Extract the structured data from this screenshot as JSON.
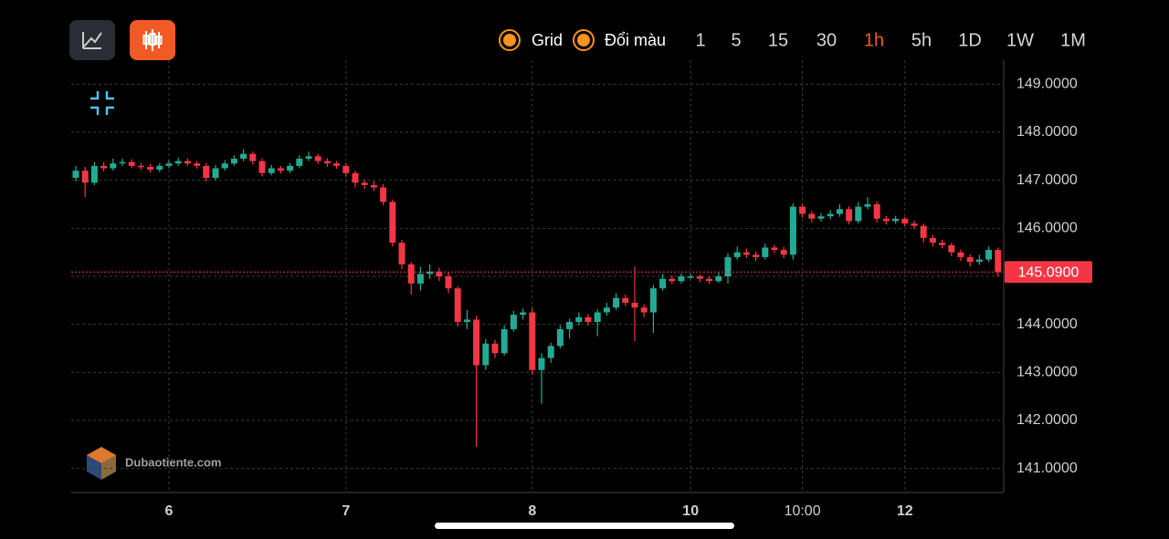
{
  "toolbar": {
    "options": [
      "Grid",
      "Đổi màu"
    ],
    "timeframes": [
      "1",
      "5",
      "15",
      "30",
      "1h",
      "5h",
      "1D",
      "1W",
      "1M"
    ],
    "active_timeframe": "1h"
  },
  "watermark": "Dubaotiente.com",
  "chart_data": {
    "type": "candlestick",
    "grid": true,
    "up_color": "#22ab94",
    "down_color": "#f23645",
    "ylim": [
      140.5,
      149.5
    ],
    "yticks": [
      {
        "value": 141,
        "label": "141.0000"
      },
      {
        "value": 142,
        "label": "142.0000"
      },
      {
        "value": 143,
        "label": "143.0000"
      },
      {
        "value": 144,
        "label": "144.0000"
      },
      {
        "value": 145,
        "label": "145.0000"
      },
      {
        "value": 146,
        "label": "146.0000"
      },
      {
        "value": 147,
        "label": "147.0000"
      },
      {
        "value": 148,
        "label": "148.0000"
      },
      {
        "value": 149,
        "label": "149.0000"
      }
    ],
    "last_price": {
      "value": 145.09,
      "label": "145.0900",
      "color": "#f23645"
    },
    "categories": [
      null,
      null,
      null,
      null,
      null,
      null,
      null,
      null,
      null,
      null,
      "6",
      null,
      null,
      null,
      null,
      null,
      null,
      null,
      null,
      null,
      null,
      null,
      null,
      null,
      null,
      null,
      null,
      null,
      null,
      "7",
      null,
      null,
      null,
      null,
      null,
      null,
      null,
      null,
      null,
      null,
      null,
      null,
      null,
      null,
      null,
      null,
      null,
      null,
      null,
      "8",
      null,
      null,
      null,
      null,
      null,
      null,
      null,
      null,
      null,
      null,
      null,
      null,
      null,
      null,
      null,
      null,
      "10",
      null,
      null,
      null,
      null,
      null,
      null,
      null,
      null,
      null,
      null,
      null,
      "10:00",
      null,
      null,
      null,
      null,
      null,
      null,
      null,
      null,
      null,
      null,
      "12",
      null,
      null,
      null,
      null,
      null,
      null,
      null,
      null,
      null,
      null
    ],
    "open": [
      147.05,
      147.2,
      146.95,
      147.3,
      147.25,
      147.35,
      147.38,
      147.3,
      147.28,
      147.22,
      147.3,
      147.35,
      147.4,
      147.35,
      147.3,
      147.05,
      147.25,
      147.35,
      147.45,
      147.55,
      147.4,
      147.15,
      147.25,
      147.2,
      147.3,
      147.45,
      147.5,
      147.4,
      147.35,
      147.3,
      147.15,
      146.95,
      146.9,
      146.85,
      146.55,
      145.7,
      145.25,
      144.85,
      145.05,
      145.1,
      145.0,
      144.75,
      144.05,
      144.1,
      143.15,
      143.6,
      143.4,
      143.9,
      144.2,
      144.25,
      143.05,
      143.3,
      143.55,
      143.9,
      144.05,
      144.15,
      144.05,
      144.25,
      144.35,
      144.55,
      144.45,
      144.35,
      144.25,
      144.75,
      144.95,
      144.9,
      145.0,
      145.0,
      144.95,
      144.9,
      145.0,
      145.4,
      145.5,
      145.45,
      145.4,
      145.6,
      145.55,
      145.45,
      146.45,
      146.3,
      146.2,
      146.25,
      146.3,
      146.4,
      146.15,
      146.45,
      146.5,
      146.2,
      146.15,
      146.2,
      146.1,
      146.05,
      145.8,
      145.7,
      145.65,
      145.5,
      145.4,
      145.3,
      145.35,
      145.55
    ],
    "high": [
      147.3,
      147.28,
      147.38,
      147.38,
      147.45,
      147.45,
      147.44,
      147.36,
      147.34,
      147.36,
      147.42,
      147.47,
      147.46,
      147.4,
      147.36,
      147.32,
      147.42,
      147.52,
      147.65,
      147.6,
      147.46,
      147.32,
      147.3,
      147.36,
      147.52,
      147.6,
      147.55,
      147.46,
      147.4,
      147.36,
      147.2,
      147.02,
      146.98,
      146.92,
      146.6,
      145.76,
      145.3,
      145.2,
      145.25,
      145.18,
      145.08,
      144.8,
      144.3,
      144.18,
      143.7,
      143.68,
      143.98,
      144.28,
      144.33,
      144.35,
      143.4,
      143.62,
      143.98,
      144.12,
      144.25,
      144.22,
      144.32,
      144.45,
      144.65,
      144.62,
      145.2,
      144.42,
      144.82,
      145.05,
      145.02,
      145.06,
      145.06,
      145.04,
      145.0,
      145.08,
      145.48,
      145.62,
      145.58,
      145.52,
      145.68,
      145.66,
      145.62,
      146.52,
      146.5,
      146.36,
      146.32,
      146.38,
      146.5,
      146.46,
      146.55,
      146.65,
      146.56,
      146.26,
      146.26,
      146.24,
      146.16,
      146.1,
      145.86,
      145.76,
      145.7,
      145.56,
      145.46,
      145.45,
      145.62,
      145.6
    ],
    "low": [
      146.98,
      146.65,
      146.9,
      147.18,
      147.2,
      147.3,
      147.25,
      147.22,
      147.16,
      147.17,
      147.25,
      147.3,
      147.3,
      147.24,
      146.98,
      147.0,
      147.2,
      147.3,
      147.4,
      147.33,
      147.08,
      147.1,
      147.14,
      147.15,
      147.25,
      147.4,
      147.34,
      147.28,
      147.24,
      147.08,
      146.85,
      146.82,
      146.78,
      146.48,
      145.62,
      145.15,
      144.62,
      144.7,
      144.95,
      144.9,
      144.65,
      143.95,
      143.9,
      141.45,
      143.05,
      143.3,
      143.35,
      143.85,
      144.1,
      142.95,
      142.35,
      143.2,
      143.5,
      143.7,
      143.98,
      143.98,
      143.75,
      144.18,
      144.3,
      144.38,
      143.65,
      144.15,
      143.82,
      144.7,
      144.84,
      144.85,
      144.94,
      144.88,
      144.84,
      144.86,
      144.85,
      145.35,
      145.38,
      145.32,
      145.35,
      145.48,
      145.38,
      145.35,
      146.22,
      146.12,
      146.14,
      146.18,
      146.24,
      146.08,
      146.1,
      146.4,
      146.12,
      146.08,
      146.1,
      146.04,
      145.98,
      145.7,
      145.62,
      145.58,
      145.42,
      145.32,
      145.2,
      145.24,
      145.3,
      145.0
    ],
    "close": [
      147.2,
      146.95,
      147.3,
      147.25,
      147.35,
      147.38,
      147.3,
      147.28,
      147.22,
      147.3,
      147.35,
      147.4,
      147.35,
      147.3,
      147.05,
      147.25,
      147.35,
      147.45,
      147.55,
      147.4,
      147.15,
      147.25,
      147.2,
      147.3,
      147.45,
      147.5,
      147.4,
      147.35,
      147.3,
      147.15,
      146.95,
      146.9,
      146.85,
      146.55,
      145.7,
      145.25,
      144.85,
      145.05,
      145.1,
      145.0,
      144.75,
      144.05,
      144.1,
      143.15,
      143.6,
      143.4,
      143.9,
      144.2,
      144.25,
      143.05,
      143.3,
      143.55,
      143.9,
      144.05,
      144.15,
      144.05,
      144.25,
      144.35,
      144.55,
      144.45,
      144.35,
      144.25,
      144.75,
      144.95,
      144.9,
      145.0,
      145.0,
      144.95,
      144.9,
      145.0,
      145.4,
      145.5,
      145.45,
      145.4,
      145.6,
      145.55,
      145.45,
      146.45,
      146.3,
      146.2,
      146.25,
      146.3,
      146.4,
      146.15,
      146.45,
      146.5,
      146.2,
      146.15,
      146.2,
      146.1,
      146.05,
      145.8,
      145.7,
      145.65,
      145.5,
      145.4,
      145.3,
      145.35,
      145.55,
      145.09
    ]
  }
}
